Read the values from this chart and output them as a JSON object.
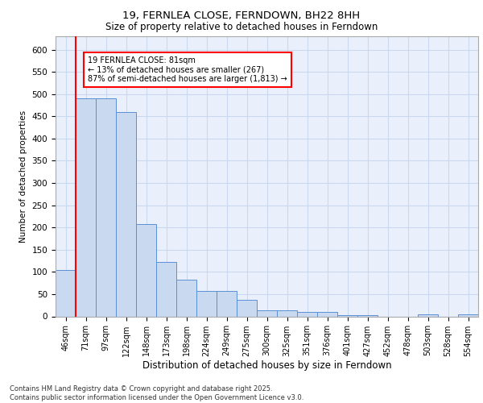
{
  "title": "19, FERNLEA CLOSE, FERNDOWN, BH22 8HH",
  "subtitle": "Size of property relative to detached houses in Ferndown",
  "xlabel": "Distribution of detached houses by size in Ferndown",
  "ylabel": "Number of detached properties",
  "categories": [
    "46sqm",
    "71sqm",
    "97sqm",
    "122sqm",
    "148sqm",
    "173sqm",
    "198sqm",
    "224sqm",
    "249sqm",
    "275sqm",
    "300sqm",
    "325sqm",
    "351sqm",
    "376sqm",
    "401sqm",
    "427sqm",
    "452sqm",
    "478sqm",
    "503sqm",
    "528sqm",
    "554sqm"
  ],
  "values": [
    105,
    490,
    490,
    460,
    207,
    122,
    82,
    57,
    57,
    38,
    13,
    13,
    10,
    10,
    3,
    3,
    0,
    0,
    5,
    0,
    5
  ],
  "bar_color": "#c9d9f0",
  "bar_edge_color": "#5b8fd4",
  "grid_color": "#c8d8ee",
  "background_color": "#eaf0fb",
  "vline_color": "red",
  "annotation_text": "19 FERNLEA CLOSE: 81sqm\n← 13% of detached houses are smaller (267)\n87% of semi-detached houses are larger (1,813) →",
  "annotation_box_color": "white",
  "annotation_box_edge": "red",
  "footer": "Contains HM Land Registry data © Crown copyright and database right 2025.\nContains public sector information licensed under the Open Government Licence v3.0.",
  "ylim": [
    0,
    630
  ],
  "yticks": [
    0,
    50,
    100,
    150,
    200,
    250,
    300,
    350,
    400,
    450,
    500,
    550,
    600
  ]
}
